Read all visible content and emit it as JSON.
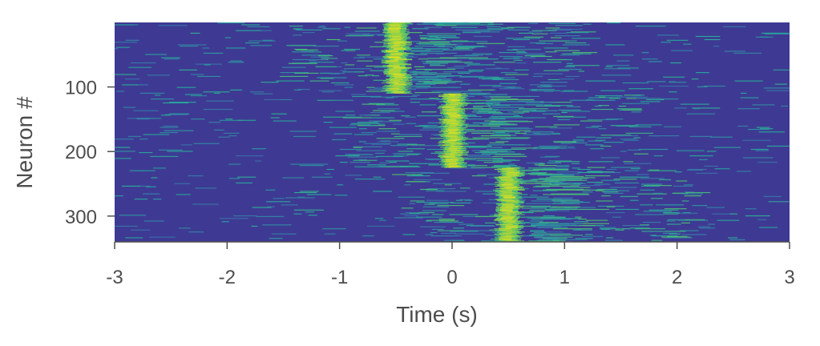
{
  "chart_data": {
    "type": "heatmap",
    "title": "",
    "xlabel": "Time (s)",
    "ylabel": "Neuron #",
    "xlim": [
      -3,
      3
    ],
    "ylim": [
      340,
      0
    ],
    "x_ticks": [
      {
        "value": -3,
        "label": "-3"
      },
      {
        "value": -2,
        "label": "-2"
      },
      {
        "value": -1,
        "label": "-1"
      },
      {
        "value": 0,
        "label": "0"
      },
      {
        "value": 1,
        "label": "1"
      },
      {
        "value": 2,
        "label": "2"
      },
      {
        "value": 3,
        "label": "3"
      }
    ],
    "y_ticks": [
      {
        "value": 100,
        "label": "100"
      },
      {
        "value": 200,
        "label": "200"
      },
      {
        "value": 300,
        "label": "300"
      }
    ],
    "colormap": [
      "#3e3a93",
      "#3a6ea8",
      "#28a89a",
      "#5cc561",
      "#e6e21e"
    ],
    "background_color": "#3e3a93",
    "groups": [
      {
        "neuron_range": [
          1,
          110
        ],
        "peak_time": -0.5
      },
      {
        "neuron_range": [
          111,
          225
        ],
        "peak_time": 0.0
      },
      {
        "neuron_range": [
          226,
          340
        ],
        "peak_time": 0.5
      }
    ],
    "grid": false
  }
}
